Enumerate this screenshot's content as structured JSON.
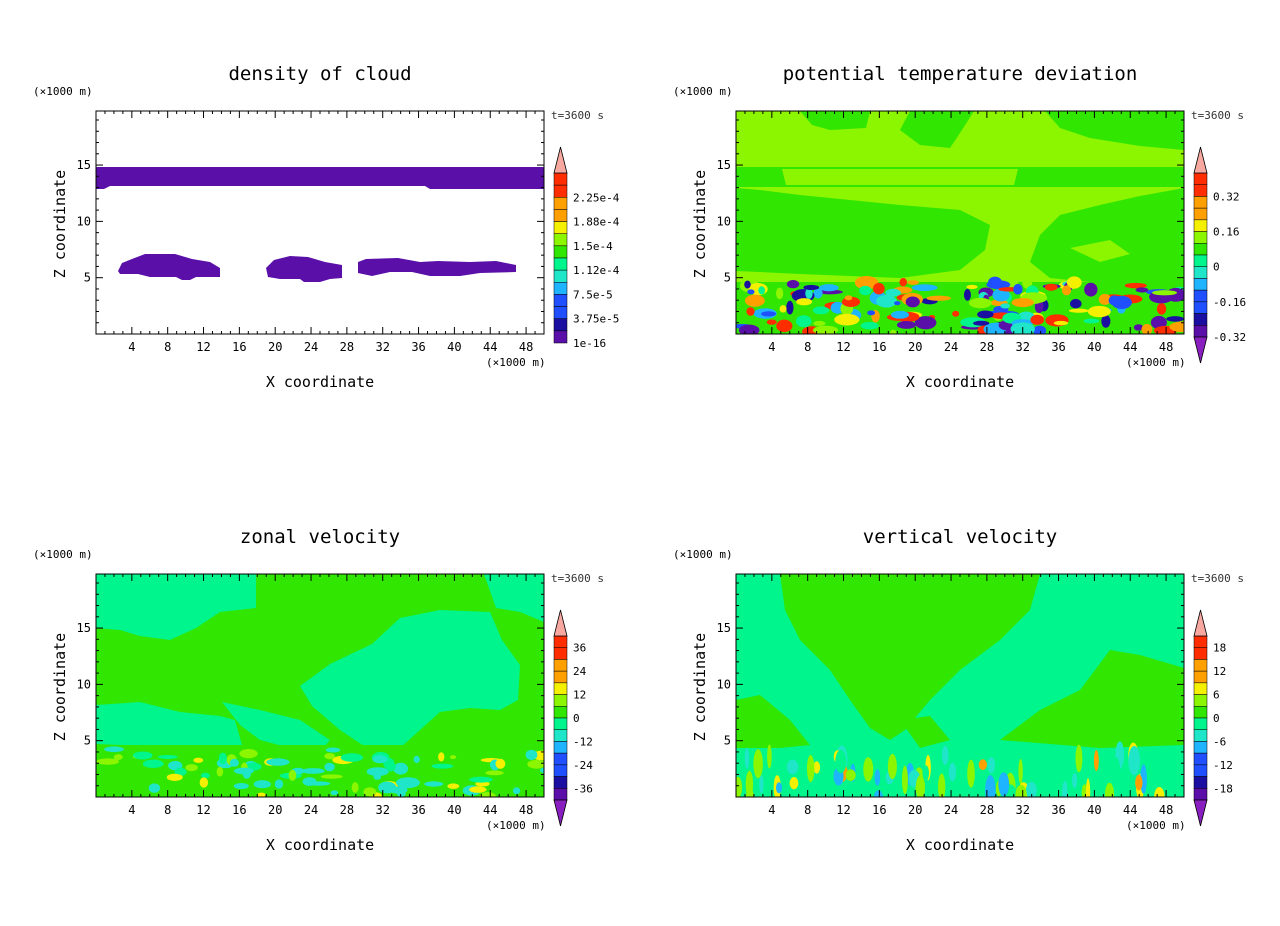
{
  "colors": {
    "violet": "#5a0fa8",
    "deep_blue": "#1a0fa0",
    "blue": "#1f4fff",
    "sky": "#1fb4ff",
    "cyan": "#1fe6c8",
    "spring_green": "#00f58c",
    "green": "#31e600",
    "lime": "#8cf500",
    "yellow": "#f5f000",
    "orange": "#ffa000",
    "red": "#ff2d00",
    "pink": "#f7a8a0",
    "purple_tip": "#8a1fc0"
  },
  "chart_data": [
    {
      "type": "heatmap",
      "title": "density of cloud",
      "xlabel": "X coordinate",
      "ylabel": "Z coordinate",
      "x_unit": "(×1000 m)",
      "y_unit": "(×1000 m)",
      "time_label": "t=3600 s",
      "xlim": [
        0,
        50
      ],
      "ylim": [
        0,
        19.8
      ],
      "x_ticks": [
        4,
        8,
        12,
        16,
        20,
        24,
        28,
        32,
        36,
        40,
        44,
        48
      ],
      "y_ticks": [
        5,
        10,
        15
      ],
      "colorbar": {
        "labels": [
          "2.25e-4",
          "1.88e-4",
          "1.5e-4",
          "1.12e-4",
          "7.5e-5",
          "3.75e-5",
          "1e-16"
        ],
        "top_arrow": true,
        "bottom_arrow": false
      },
      "cloud_regions": [
        {
          "name": "upper layer",
          "x": [
            0,
            50
          ],
          "z": [
            12.9,
            14.9
          ]
        },
        {
          "name": "low cloud 1",
          "x": [
            2.5,
            13.7
          ],
          "z": [
            4.9,
            7.2
          ]
        },
        {
          "name": "low cloud 2",
          "x": [
            19,
            27.5
          ],
          "z": [
            4.7,
            6.9
          ]
        },
        {
          "name": "low cloud 3",
          "x": [
            29.5,
            47
          ],
          "z": [
            5.0,
            6.8
          ]
        }
      ],
      "value_in_clouds": "1e-16"
    },
    {
      "type": "heatmap",
      "title": "potential temperature deviation",
      "xlabel": "X coordinate",
      "ylabel": "Z coordinate",
      "x_unit": "(×1000 m)",
      "y_unit": "(×1000 m)",
      "time_label": "t=3600 s",
      "xlim": [
        0,
        50
      ],
      "ylim": [
        0,
        19.8
      ],
      "x_ticks": [
        4,
        8,
        12,
        16,
        20,
        24,
        28,
        32,
        36,
        40,
        44,
        48
      ],
      "y_ticks": [
        5,
        10,
        15
      ],
      "colorbar": {
        "labels": [
          "0.32",
          "0.16",
          "0",
          "-0.16",
          "-0.32"
        ],
        "top_arrow": true,
        "bottom_arrow": true
      },
      "turbulent_layer_z": [
        0,
        4.3
      ]
    },
    {
      "type": "heatmap",
      "title": "zonal velocity",
      "xlabel": "X coordinate",
      "ylabel": "Z coordinate",
      "x_unit": "(×1000 m)",
      "y_unit": "(×1000 m)",
      "time_label": "t=3600 s",
      "xlim": [
        0,
        50
      ],
      "ylim": [
        0,
        19.8
      ],
      "x_ticks": [
        4,
        8,
        12,
        16,
        20,
        24,
        28,
        32,
        36,
        40,
        44,
        48
      ],
      "y_ticks": [
        5,
        10,
        15
      ],
      "colorbar": {
        "labels": [
          "36",
          "24",
          "12",
          "0",
          "-12",
          "-24",
          "-36"
        ],
        "top_arrow": true,
        "bottom_arrow": true
      },
      "turbulent_layer_z": [
        0,
        4.5
      ]
    },
    {
      "type": "heatmap",
      "title": "vertical velocity",
      "xlabel": "X coordinate",
      "ylabel": "Z coordinate",
      "x_unit": "(×1000 m)",
      "y_unit": "(×1000 m)",
      "time_label": "t=3600 s",
      "xlim": [
        0,
        50
      ],
      "ylim": [
        0,
        19.8
      ],
      "x_ticks": [
        4,
        8,
        12,
        16,
        20,
        24,
        28,
        32,
        36,
        40,
        44,
        48
      ],
      "y_ticks": [
        5,
        10,
        15
      ],
      "colorbar": {
        "labels": [
          "18",
          "12",
          "6",
          "0",
          "-6",
          "-12",
          "-18"
        ],
        "top_arrow": true,
        "bottom_arrow": true
      },
      "turbulent_layer_z": [
        0,
        3.7
      ]
    }
  ]
}
